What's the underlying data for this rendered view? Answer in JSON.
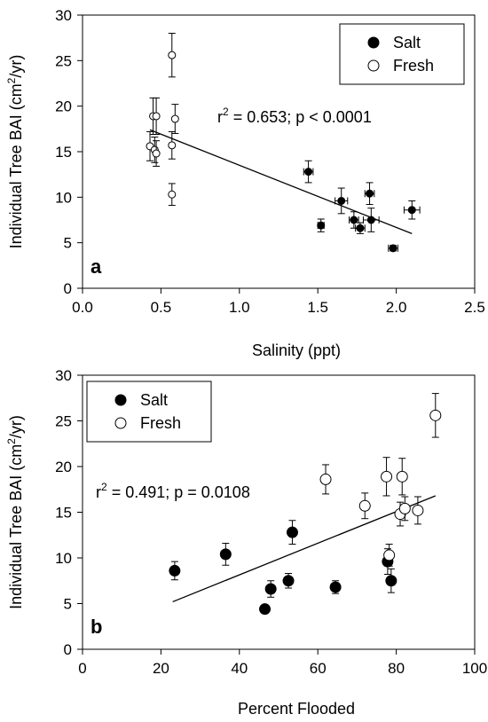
{
  "chart_data": [
    {
      "type": "scatter",
      "panel_label": "a",
      "xlabel": "Salinity (ppt)",
      "ylabel_main": "Individual Tree BAI (cm",
      "ylabel_sup": "2",
      "ylabel_end": "/yr)",
      "xlim": [
        0,
        2.5
      ],
      "ylim": [
        0,
        30
      ],
      "x_ticks": [
        "0.0",
        "0.5",
        "1.0",
        "1.5",
        "2.0",
        "2.5"
      ],
      "x_tick_values": [
        0,
        0.5,
        1.0,
        1.5,
        2.0,
        2.5
      ],
      "y_ticks": [
        "0",
        "5",
        "10",
        "15",
        "20",
        "25",
        "30"
      ],
      "y_tick_values": [
        0,
        5,
        10,
        15,
        20,
        25,
        30
      ],
      "annotation_r": "r",
      "annotation_sup": "2",
      "annotation_rest": " = 0.653; p < 0.0001",
      "legend": {
        "position": "top-right",
        "entries": [
          "Salt",
          "Fresh"
        ]
      },
      "series": [
        {
          "name": "Salt",
          "marker": "filled",
          "points": [
            {
              "x": 1.44,
              "y": 12.8,
              "yerr": 1.2,
              "xerr": 0.03
            },
            {
              "x": 1.52,
              "y": 6.9,
              "yerr": 0.7,
              "xerr": 0.02
            },
            {
              "x": 1.65,
              "y": 9.6,
              "yerr": 1.4,
              "xerr": 0.04
            },
            {
              "x": 1.73,
              "y": 7.5,
              "yerr": 0.9,
              "xerr": 0.03
            },
            {
              "x": 1.77,
              "y": 6.6,
              "yerr": 0.6,
              "xerr": 0.03
            },
            {
              "x": 1.83,
              "y": 10.4,
              "yerr": 1.2,
              "xerr": 0.03
            },
            {
              "x": 1.84,
              "y": 7.5,
              "yerr": 1.3,
              "xerr": 0.05
            },
            {
              "x": 1.98,
              "y": 4.4,
              "yerr": 0.3,
              "xerr": 0.03
            },
            {
              "x": 2.1,
              "y": 8.6,
              "yerr": 1.0,
              "xerr": 0.05
            }
          ]
        },
        {
          "name": "Fresh",
          "marker": "open",
          "points": [
            {
              "x": 0.43,
              "y": 15.6,
              "yerr": 1.6,
              "xerr": 0.0
            },
            {
              "x": 0.45,
              "y": 18.9,
              "yerr": 2.0,
              "xerr": 0.0
            },
            {
              "x": 0.46,
              "y": 15.2,
              "yerr": 1.4,
              "xerr": 0.0
            },
            {
              "x": 0.47,
              "y": 14.8,
              "yerr": 1.4,
              "xerr": 0.0
            },
            {
              "x": 0.47,
              "y": 18.9,
              "yerr": 2.0,
              "xerr": 0.0
            },
            {
              "x": 0.57,
              "y": 25.6,
              "yerr": 2.4,
              "xerr": 0.0
            },
            {
              "x": 0.57,
              "y": 15.7,
              "yerr": 1.5,
              "xerr": 0.0
            },
            {
              "x": 0.57,
              "y": 10.3,
              "yerr": 1.2,
              "xerr": 0.0
            },
            {
              "x": 0.59,
              "y": 18.6,
              "yerr": 1.6,
              "xerr": 0.0
            }
          ]
        }
      ],
      "regression_line": {
        "x": [
          0.43,
          2.1
        ],
        "y": [
          17.4,
          6.0
        ]
      }
    },
    {
      "type": "scatter",
      "panel_label": "b",
      "xlabel": "Percent Flooded",
      "ylabel_main": "Individual Tree BAI (cm",
      "ylabel_sup": "2",
      "ylabel_end": "/yr)",
      "xlim": [
        0,
        100
      ],
      "ylim": [
        0,
        30
      ],
      "x_ticks": [
        "0",
        "20",
        "40",
        "60",
        "80",
        "100"
      ],
      "x_tick_values": [
        0,
        20,
        40,
        60,
        80,
        100
      ],
      "y_ticks": [
        "0",
        "5",
        "10",
        "15",
        "20",
        "25",
        "30"
      ],
      "y_tick_values": [
        0,
        5,
        10,
        15,
        20,
        25,
        30
      ],
      "annotation_r": "r",
      "annotation_sup": "2",
      "annotation_rest": " = 0.491; p = 0.0108",
      "legend": {
        "position": "top-left",
        "entries": [
          "Salt",
          "Fresh"
        ]
      },
      "series": [
        {
          "name": "Salt",
          "marker": "filled",
          "points": [
            {
              "x": 23.5,
              "y": 8.6,
              "yerr": 1.0
            },
            {
              "x": 36.5,
              "y": 10.4,
              "yerr": 1.2
            },
            {
              "x": 46.5,
              "y": 4.4,
              "yerr": 0.3
            },
            {
              "x": 48.0,
              "y": 6.6,
              "yerr": 0.9
            },
            {
              "x": 52.5,
              "y": 7.5,
              "yerr": 0.8
            },
            {
              "x": 53.5,
              "y": 12.8,
              "yerr": 1.3
            },
            {
              "x": 64.5,
              "y": 6.8,
              "yerr": 0.7
            },
            {
              "x": 77.8,
              "y": 9.6,
              "yerr": 1.4
            },
            {
              "x": 78.7,
              "y": 7.5,
              "yerr": 1.3
            }
          ]
        },
        {
          "name": "Fresh",
          "marker": "open",
          "points": [
            {
              "x": 62.0,
              "y": 18.6,
              "yerr": 1.6
            },
            {
              "x": 72.0,
              "y": 15.7,
              "yerr": 1.4
            },
            {
              "x": 77.5,
              "y": 18.9,
              "yerr": 2.1
            },
            {
              "x": 78.2,
              "y": 10.3,
              "yerr": 1.2
            },
            {
              "x": 81.0,
              "y": 14.8,
              "yerr": 1.3
            },
            {
              "x": 81.5,
              "y": 18.9,
              "yerr": 2.0
            },
            {
              "x": 82.2,
              "y": 15.4,
              "yerr": 1.3
            },
            {
              "x": 85.5,
              "y": 15.2,
              "yerr": 1.5
            },
            {
              "x": 90.0,
              "y": 25.6,
              "yerr": 2.4
            }
          ]
        }
      ],
      "regression_line": {
        "x": [
          23,
          90
        ],
        "y": [
          5.2,
          16.8
        ]
      }
    }
  ]
}
